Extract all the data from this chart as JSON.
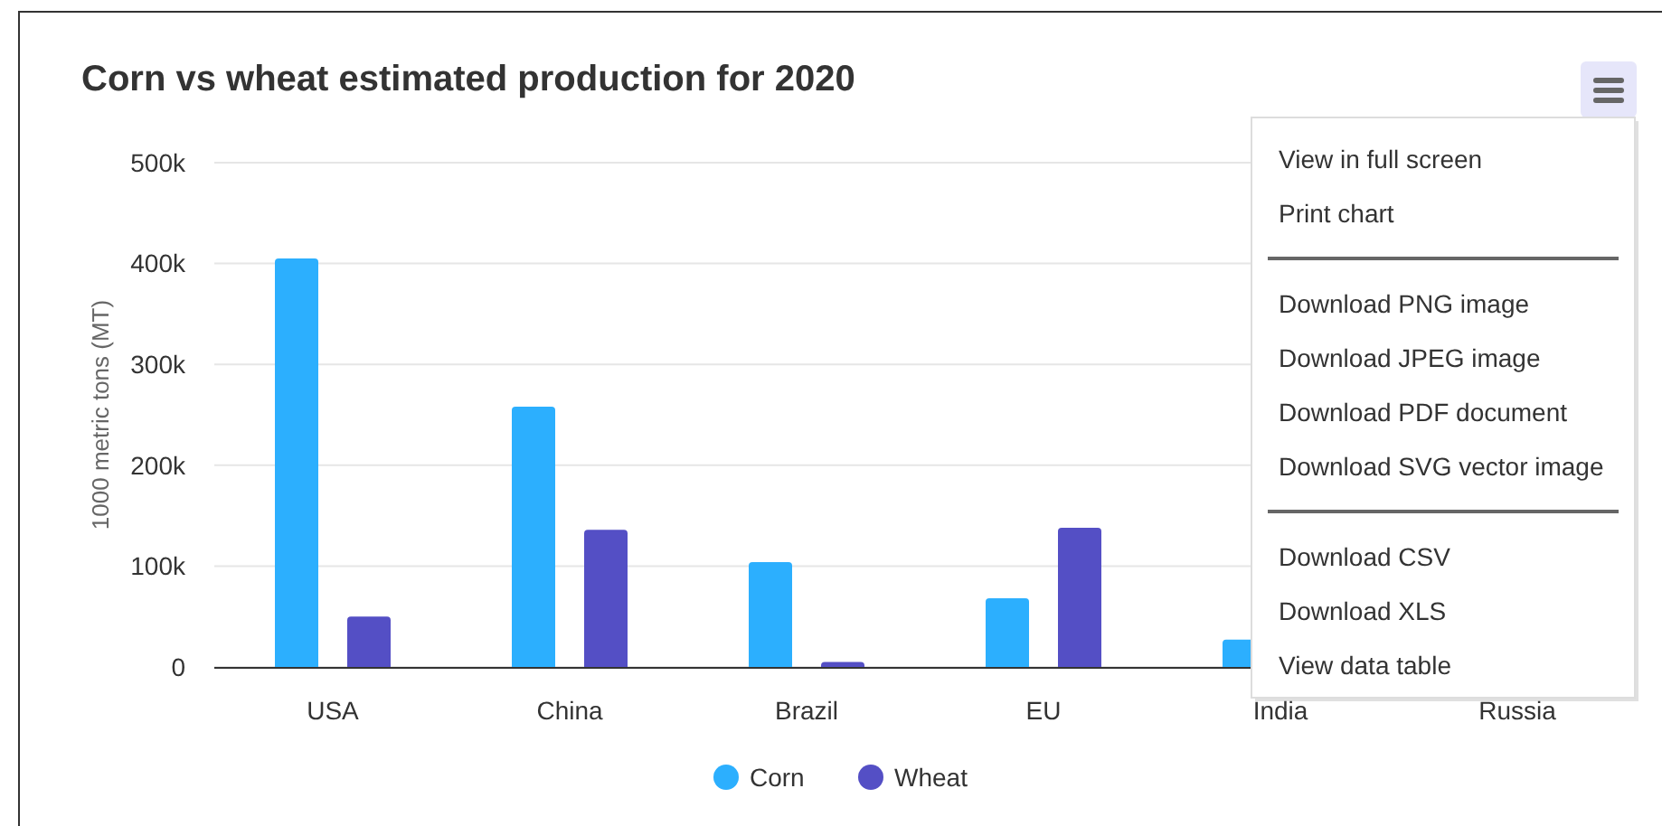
{
  "chart_data": {
    "type": "bar",
    "title": "Corn vs wheat estimated production for 2020",
    "ylabel": "1000 metric tons (MT)",
    "categories": [
      "USA",
      "China",
      "Brazil",
      "EU",
      "India",
      "Russia"
    ],
    "series": [
      {
        "name": "Corn",
        "color": "#2caffe",
        "values": [
          405000,
          258000,
          104000,
          68000,
          27000,
          null
        ]
      },
      {
        "name": "Wheat",
        "color": "#544fc5",
        "values": [
          50000,
          136000,
          5000,
          138000,
          null,
          null
        ]
      }
    ],
    "ylim": [
      0,
      500000
    ],
    "yticks": [
      {
        "value": 0,
        "label": "0"
      },
      {
        "value": 100000,
        "label": "100k"
      },
      {
        "value": 200000,
        "label": "200k"
      },
      {
        "value": 300000,
        "label": "300k"
      },
      {
        "value": 400000,
        "label": "400k"
      },
      {
        "value": 500000,
        "label": "500k"
      }
    ],
    "grid": "y",
    "legend": "bottom",
    "annotations": [
      "View in full screen",
      "Print chart",
      "Download PNG image",
      "Download JPEG image",
      "Download PDF document",
      "Download SVG vector image",
      "Download CSV",
      "Download XLS",
      "View data table"
    ]
  }
}
